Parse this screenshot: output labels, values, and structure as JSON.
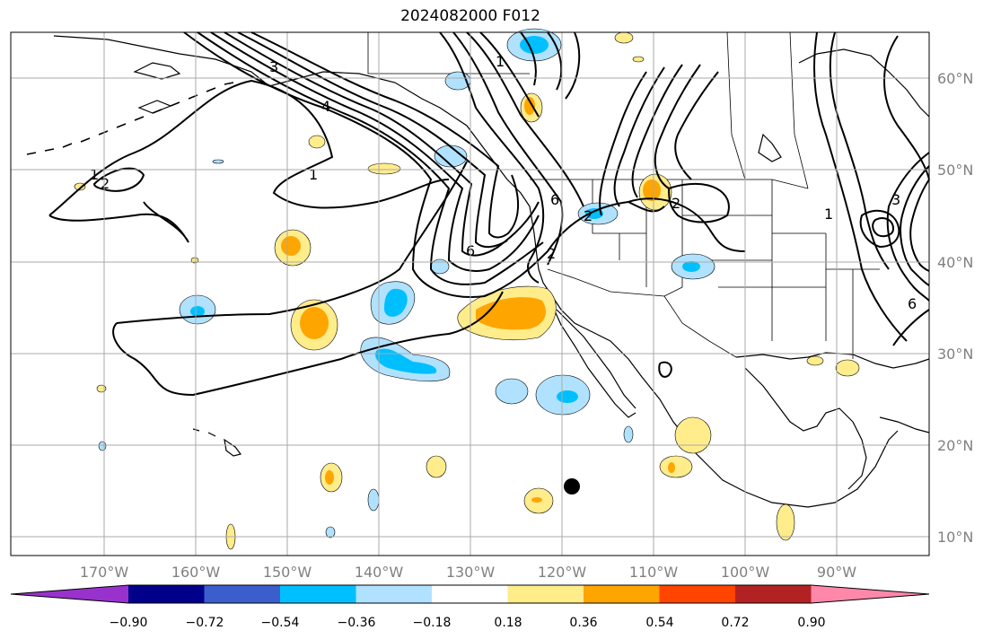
{
  "title": "2024082000 F012",
  "map": {
    "lon_labels": [
      "170°W",
      "160°W",
      "150°W",
      "140°W",
      "130°W",
      "120°W",
      "110°W",
      "100°W",
      "90°W"
    ],
    "lat_labels": [
      "60°N",
      "50°N",
      "40°N",
      "30°N",
      "20°N",
      "10°N"
    ],
    "gridlines": true,
    "contour_labels": [
      "1",
      "1",
      "2",
      "3",
      "4",
      "6",
      "6",
      "2",
      "2",
      "1",
      "3",
      "6",
      "2",
      "1"
    ],
    "marker": "storm-center-dot"
  },
  "colorbar": {
    "ticks": [
      "−0.90",
      "−0.72",
      "−0.54",
      "−0.36",
      "−0.18",
      "0.18",
      "0.36",
      "0.54",
      "0.72",
      "0.90"
    ],
    "colors": [
      "#9932CC",
      "#00008B",
      "#3A5FCD",
      "#00BFFF",
      "#B0E2FF",
      "#FFFFFF",
      "#FFEC8B",
      "#FFA500",
      "#FF4500",
      "#B22222",
      "#FF88AA"
    ]
  },
  "colors": {
    "land_border": "#000000",
    "grid": "#aaaaaa",
    "pos1": "#FFEC8B",
    "pos2": "#FFA500",
    "neg1": "#B0E2FF",
    "neg2": "#00BFFF"
  }
}
